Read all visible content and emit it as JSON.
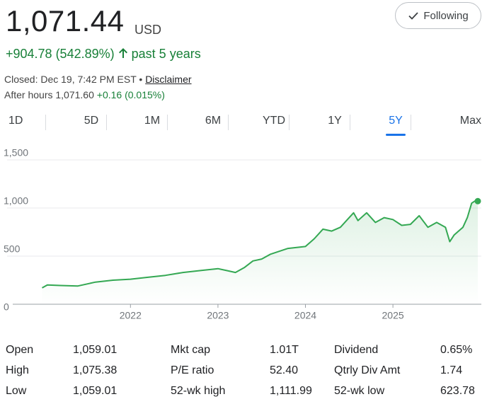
{
  "header": {
    "price": "1,071.44",
    "currency": "USD",
    "change": "+904.78 (542.89%)",
    "period": "past 5 years",
    "closed": "Closed: Dec 19, 7:42 PM EST",
    "separator": "•",
    "disclaimer": "Disclaimer",
    "after_hours": "After hours 1,071.60",
    "after_change": "+0.16 (0.015%)"
  },
  "follow_button": "Following",
  "tabs": [
    "1D",
    "5D",
    "1M",
    "6M",
    "YTD",
    "1Y",
    "5Y",
    "Max"
  ],
  "active_tab": 6,
  "chart_data": {
    "type": "line",
    "color": "#34a853",
    "x": [
      2020.99,
      2021.05,
      2021.2,
      2021.4,
      2021.6,
      2021.8,
      2022.0,
      2022.2,
      2022.4,
      2022.6,
      2022.8,
      2023.0,
      2023.1,
      2023.2,
      2023.3,
      2023.4,
      2023.5,
      2023.6,
      2023.8,
      2024.0,
      2024.1,
      2024.2,
      2024.3,
      2024.4,
      2024.5,
      2024.55,
      2024.6,
      2024.7,
      2024.8,
      2024.9,
      2025.0,
      2025.1,
      2025.2,
      2025.3,
      2025.4,
      2025.5,
      2025.6,
      2025.65,
      2025.7,
      2025.75,
      2025.8,
      2025.85,
      2025.9,
      2025.95,
      2025.97
    ],
    "values": [
      170,
      200,
      195,
      190,
      230,
      250,
      260,
      280,
      300,
      330,
      350,
      370,
      350,
      330,
      380,
      450,
      470,
      520,
      580,
      600,
      680,
      780,
      760,
      800,
      900,
      950,
      870,
      950,
      850,
      900,
      880,
      820,
      830,
      920,
      800,
      850,
      800,
      650,
      720,
      760,
      800,
      900,
      1050,
      1080,
      1071.44
    ],
    "xlim": [
      2020.97,
      2025.97
    ],
    "xticks": [
      2022,
      2023,
      2024,
      2025
    ],
    "ylim": [
      0,
      1500
    ],
    "yticks": [
      0,
      500,
      {
        "value": 1000,
        "label": "1,000"
      },
      {
        "value": 1500,
        "label": "1,500"
      }
    ],
    "grid": true
  },
  "stats": [
    [
      "Open",
      "1,059.01",
      "Mkt cap",
      "1.01T",
      "Dividend",
      "0.65%"
    ],
    [
      "High",
      "1,075.38",
      "P/E ratio",
      "52.40",
      "Qtrly Div Amt",
      "1.74"
    ],
    [
      "Low",
      "1,059.01",
      "52-wk high",
      "1,111.99",
      "52-wk low",
      "623.78"
    ]
  ]
}
